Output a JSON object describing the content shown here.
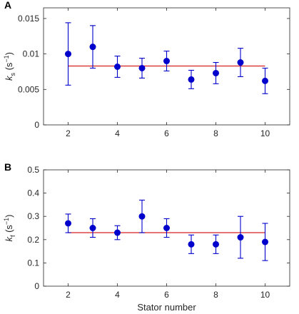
{
  "chart_data": [
    {
      "type": "scatter",
      "panel_label": "A",
      "ylabel": {
        "symbol": "k",
        "subscript": "s",
        "unit_open": "(s",
        "unit_exp": "−1",
        "unit_close": ")"
      },
      "xlabel": "",
      "x": [
        2,
        3,
        4,
        5,
        6,
        7,
        8,
        9,
        10
      ],
      "y": [
        0.01,
        0.011,
        0.0082,
        0.008,
        0.009,
        0.0064,
        0.0073,
        0.0088,
        0.0062
      ],
      "err_low": [
        0.0056,
        0.008,
        0.0067,
        0.0066,
        0.0076,
        0.0051,
        0.0058,
        0.0068,
        0.0044
      ],
      "err_high": [
        0.0144,
        0.014,
        0.0097,
        0.0094,
        0.0104,
        0.0077,
        0.0088,
        0.0108,
        0.008
      ],
      "mean_line": {
        "y": 0.0083,
        "x": [
          2,
          10
        ]
      },
      "xlim": [
        1,
        11
      ],
      "ylim": [
        0,
        0.0165
      ],
      "xticks": [
        2,
        4,
        6,
        8,
        10
      ],
      "xtick_labels": [
        "2",
        "4",
        "6",
        "8",
        "10"
      ],
      "yticks": [
        0,
        0.005,
        0.01,
        0.015
      ],
      "ytick_labels": [
        "0",
        "0.005",
        "0.01",
        "0.015"
      ],
      "grid": false,
      "colors": {
        "points": "#0000cc",
        "mean_line": "#d62020",
        "axes": "#262626"
      }
    },
    {
      "type": "scatter",
      "panel_label": "B",
      "ylabel": {
        "symbol": "k",
        "subscript": "f",
        "unit_open": "(s",
        "unit_exp": "−1",
        "unit_close": ")"
      },
      "xlabel": "Stator number",
      "x": [
        2,
        3,
        4,
        5,
        6,
        7,
        8,
        9,
        10
      ],
      "y": [
        0.27,
        0.25,
        0.23,
        0.3,
        0.25,
        0.18,
        0.18,
        0.21,
        0.19
      ],
      "err_low": [
        0.23,
        0.21,
        0.2,
        0.23,
        0.21,
        0.14,
        0.14,
        0.12,
        0.11
      ],
      "err_high": [
        0.31,
        0.29,
        0.26,
        0.37,
        0.29,
        0.22,
        0.22,
        0.3,
        0.27
      ],
      "mean_line": {
        "y": 0.23,
        "x": [
          2,
          10
        ]
      },
      "xlim": [
        1,
        11
      ],
      "ylim": [
        0,
        0.5
      ],
      "xticks": [
        2,
        4,
        6,
        8,
        10
      ],
      "xtick_labels": [
        "2",
        "4",
        "6",
        "8",
        "10"
      ],
      "yticks": [
        0,
        0.1,
        0.2,
        0.3,
        0.4,
        0.5
      ],
      "ytick_labels": [
        "0",
        "0.1",
        "0.2",
        "0.3",
        "0.4",
        "0.5"
      ],
      "grid": false,
      "colors": {
        "points": "#0000cc",
        "mean_line": "#d62020",
        "axes": "#262626"
      }
    }
  ]
}
